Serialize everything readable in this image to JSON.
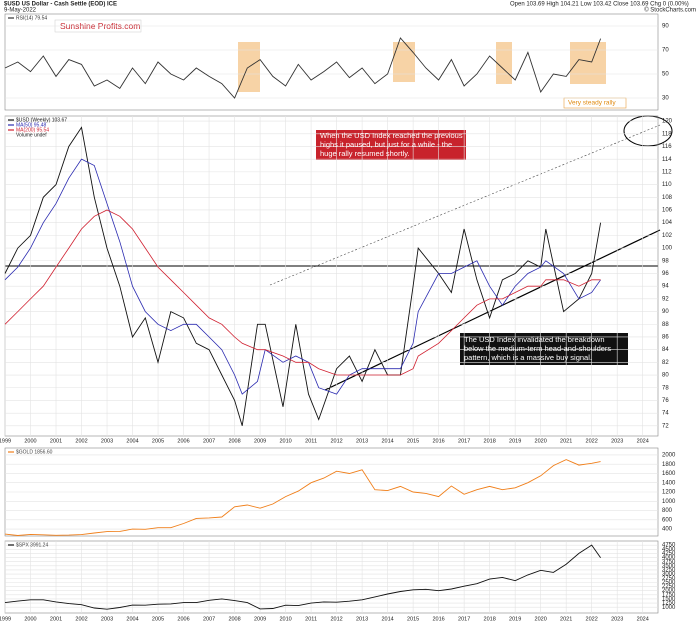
{
  "header": {
    "title": "$USD US Dollar - Cash Settle (EOD) ICE",
    "date": "9-May-2022",
    "quote": "Open 103.69 High 104.21 Low 103.42 Close 103.69 Chg 0 (0.00%)",
    "credit": "© StockCharts.com",
    "logo": "Sunshine Profits.com"
  },
  "rsi_note": "Very steady rally",
  "chart_data": [
    {
      "type": "line",
      "x": [
        1999,
        1999.5,
        2000,
        2000.5,
        2001,
        2001.5,
        2002,
        2002.5,
        2003,
        2003.5,
        2004,
        2004.5,
        2005,
        2005.5,
        2006,
        2006.5,
        2007,
        2007.5,
        2008,
        2008.5,
        2009,
        2009.5,
        2010,
        2010.5,
        2011,
        2011.5,
        2012,
        2012.5,
        2013,
        2013.5,
        2014,
        2014.5,
        2015,
        2015.5,
        2016,
        2016.5,
        2017,
        2017.5,
        2018,
        2018.5,
        2019,
        2019.5,
        2020,
        2020.5,
        2021,
        2021.5,
        2022,
        2022.35
      ],
      "series": [
        {
          "name": "RSI(14) 79.54",
          "color": "#333333",
          "values": [
            55,
            60,
            52,
            65,
            48,
            62,
            58,
            40,
            45,
            38,
            55,
            42,
            60,
            50,
            45,
            55,
            48,
            42,
            30,
            55,
            62,
            48,
            40,
            58,
            45,
            52,
            60,
            47,
            55,
            42,
            50,
            80,
            68,
            55,
            45,
            62,
            40,
            50,
            65,
            55,
            45,
            68,
            35,
            50,
            48,
            62,
            60,
            79.54
          ]
        }
      ],
      "xlim": [
        1999,
        2024.6
      ],
      "ylim": [
        20,
        100
      ],
      "yticks": [
        30,
        50,
        70,
        90
      ],
      "grid": true
    },
    {
      "type": "line",
      "x": [
        1999,
        1999.5,
        2000,
        2000.5,
        2001,
        2001.5,
        2002,
        2002.5,
        2003,
        2003.5,
        2004,
        2004.5,
        2005,
        2005.5,
        2006,
        2006.5,
        2007,
        2007.5,
        2008,
        2008.3,
        2008.9,
        2009.2,
        2009.9,
        2010.4,
        2010.9,
        2011.3,
        2012,
        2012.5,
        2013,
        2013.5,
        2014,
        2014.5,
        2015,
        2015.2,
        2016,
        2016.5,
        2017,
        2017.5,
        2018,
        2018.5,
        2019,
        2019.5,
        2020,
        2020.2,
        2020.9,
        2021.5,
        2022,
        2022.35
      ],
      "series": [
        {
          "name": "$USD (Weekly) 103.67",
          "color": "#111111",
          "values": [
            96,
            100,
            102,
            108,
            110,
            116,
            119,
            108,
            100,
            94,
            86,
            89,
            82,
            90,
            89,
            85,
            84,
            80,
            76,
            72,
            88,
            88,
            75,
            88,
            77,
            73,
            81,
            83,
            79,
            84,
            80,
            80,
            94,
            100,
            96,
            93,
            103,
            95,
            89,
            95,
            96,
            98,
            97,
            103,
            90,
            92,
            96,
            104
          ]
        },
        {
          "name": "MA(50) 95.48",
          "color": "#2a2ab0",
          "values": [
            95,
            97,
            100,
            104,
            107,
            111,
            114,
            113,
            107,
            101,
            94,
            90,
            88,
            87,
            88,
            88,
            86,
            84,
            80,
            77,
            79,
            84,
            82,
            83,
            82,
            78,
            77,
            80,
            81,
            81,
            81,
            81,
            85,
            90,
            96,
            96,
            97,
            98,
            94,
            91,
            94,
            96,
            97,
            98,
            96,
            92,
            93,
            95
          ]
        },
        {
          "name": "MA(200) 95.54",
          "color": "#d02030",
          "values": [
            88,
            90,
            92,
            94,
            97,
            100,
            103,
            105,
            106,
            105,
            103,
            100,
            97,
            95,
            93,
            91,
            89,
            88,
            86,
            85,
            84,
            84,
            83,
            82,
            82,
            81,
            80,
            80,
            80,
            80,
            80,
            80,
            81,
            83,
            85,
            87,
            89,
            91,
            92,
            92,
            93,
            94,
            94,
            95,
            95,
            94,
            95,
            95
          ]
        }
      ],
      "legend_extra": "Volume undef",
      "annotations": [
        "When the USD Index reached the previous",
        "highs it paused, but just for a while - the",
        "huge rally resumed shortly.",
        "The USD Index invalidated the breakdown",
        "below the medium-term head-and-shoulders",
        "pattern, which is a massive buy signal."
      ],
      "xlim": [
        1999,
        2024.6
      ],
      "xticks": [
        1999,
        2000,
        2001,
        2002,
        2003,
        2004,
        2005,
        2006,
        2007,
        2008,
        2009,
        2010,
        2011,
        2012,
        2013,
        2014,
        2015,
        2016,
        2017,
        2018,
        2019,
        2020,
        2021,
        2022,
        2023,
        2024
      ],
      "ylim": [
        70.4,
        120.8
      ],
      "yticks": [
        72,
        74,
        76,
        78,
        80,
        82,
        84,
        86,
        88,
        90,
        92,
        94,
        96,
        98,
        100,
        102,
        104,
        106,
        108,
        110,
        112,
        114,
        116,
        118,
        120
      ],
      "grid": true
    },
    {
      "type": "line",
      "x": [
        1999,
        1999.5,
        2000,
        2000.5,
        2001,
        2001.5,
        2002,
        2002.5,
        2003,
        2003.5,
        2004,
        2004.5,
        2005,
        2005.5,
        2006,
        2006.5,
        2007,
        2007.5,
        2008,
        2008.5,
        2009,
        2009.5,
        2010,
        2010.5,
        2011,
        2011.5,
        2012,
        2012.5,
        2013,
        2013.5,
        2014,
        2014.5,
        2015,
        2015.5,
        2016,
        2016.5,
        2017,
        2017.5,
        2018,
        2018.5,
        2019,
        2019.5,
        2020,
        2020.5,
        2021,
        2021.5,
        2022,
        2022.35
      ],
      "series": [
        {
          "name": "$GOLD 1856.60",
          "color": "#f07f1a",
          "values": [
            290,
            260,
            285,
            275,
            265,
            270,
            280,
            315,
            345,
            350,
            400,
            395,
            430,
            430,
            520,
            630,
            640,
            660,
            880,
            920,
            850,
            940,
            1100,
            1220,
            1400,
            1500,
            1650,
            1600,
            1680,
            1250,
            1230,
            1320,
            1200,
            1170,
            1100,
            1330,
            1150,
            1250,
            1320,
            1250,
            1290,
            1400,
            1550,
            1770,
            1900,
            1780,
            1820,
            1856.6
          ]
        }
      ],
      "xlim": [
        1999,
        2024.6
      ],
      "ylim": [
        250,
        2150
      ],
      "yticks": [
        400,
        600,
        800,
        1000,
        1200,
        1400,
        1600,
        1800,
        2000
      ],
      "grid": true
    },
    {
      "type": "line",
      "x": [
        1999,
        1999.5,
        2000,
        2000.5,
        2001,
        2001.5,
        2002,
        2002.5,
        2003,
        2003.5,
        2004,
        2004.5,
        2005,
        2005.5,
        2006,
        2006.5,
        2007,
        2007.5,
        2008,
        2008.5,
        2009,
        2009.5,
        2010,
        2010.5,
        2011,
        2011.5,
        2012,
        2012.5,
        2013,
        2013.5,
        2014,
        2014.5,
        2015,
        2015.5,
        2016,
        2016.5,
        2017,
        2017.5,
        2018,
        2018.5,
        2019,
        2019.5,
        2020,
        2020.5,
        2021,
        2021.5,
        2022,
        2022.35
      ],
      "series": [
        {
          "name": "$SPX 3991.24",
          "color": "#111111",
          "values": [
            1280,
            1370,
            1450,
            1450,
            1320,
            1220,
            1150,
            950,
            880,
            980,
            1130,
            1120,
            1180,
            1200,
            1280,
            1280,
            1420,
            1500,
            1400,
            1280,
            900,
            920,
            1120,
            1100,
            1250,
            1320,
            1300,
            1360,
            1450,
            1620,
            1800,
            1950,
            2050,
            2080,
            2000,
            2100,
            2270,
            2420,
            2700,
            2800,
            2600,
            2950,
            3230,
            3100,
            3600,
            4250,
            4750,
            3991.24
          ]
        }
      ],
      "xlim": [
        1999,
        2024.6
      ],
      "xticks": [
        1999,
        2000,
        2001,
        2002,
        2003,
        2004,
        2005,
        2006,
        2007,
        2008,
        2009,
        2010,
        2011,
        2012,
        2013,
        2014,
        2015,
        2016,
        2017,
        2018,
        2019,
        2020,
        2021,
        2022,
        2023,
        2024
      ],
      "ylim": [
        650,
        5000
      ],
      "yticks": [
        1000,
        1250,
        1500,
        1750,
        2000,
        2250,
        2500,
        2750,
        3000,
        3250,
        3500,
        3750,
        4000,
        4250,
        4500,
        4750
      ],
      "grid": true
    }
  ]
}
